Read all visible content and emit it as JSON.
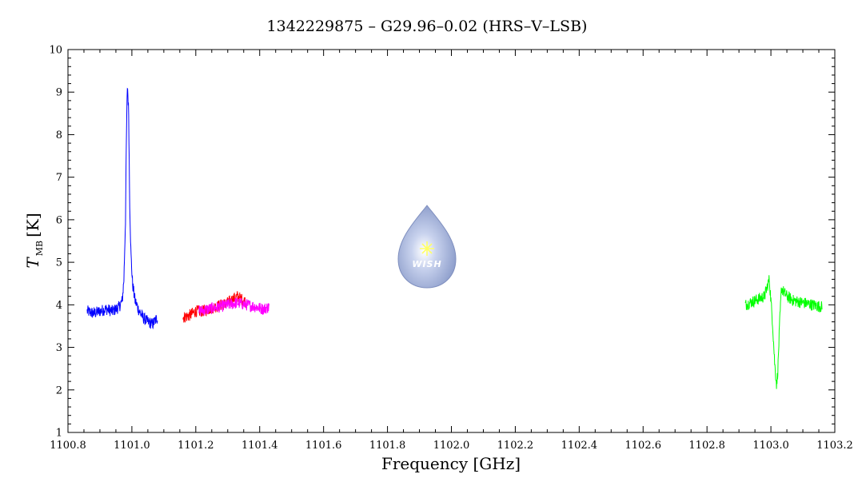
{
  "chart_data": {
    "type": "line",
    "title": "1342229875 – G29.96–0.02 (HRS–V–LSB)",
    "xlabel": "Frequency [GHz]",
    "ylabel": "T",
    "ylabel_subscript": "MB",
    "ylabel_unit": "[K]",
    "xlim": [
      1100.8,
      1103.2
    ],
    "ylim": [
      1,
      10
    ],
    "x_ticks": [
      1100.8,
      1101.0,
      1101.2,
      1101.4,
      1101.6,
      1101.8,
      1102.0,
      1102.2,
      1102.4,
      1102.6,
      1102.8,
      1103.0,
      1103.2
    ],
    "x_tick_labels": [
      "1100.8",
      "1101.0",
      "1101.2",
      "1101.4",
      "1101.6",
      "1101.8",
      "1102.0",
      "1102.2",
      "1102.4",
      "1102.6",
      "1102.8",
      "1103.0",
      "1103.2"
    ],
    "y_ticks": [
      1,
      2,
      3,
      4,
      5,
      6,
      7,
      8,
      9,
      10
    ],
    "y_tick_labels": [
      "1",
      "2",
      "3",
      "4",
      "5",
      "6",
      "7",
      "8",
      "9",
      "10"
    ],
    "grid": false,
    "series": [
      {
        "color": "#0000ff",
        "x": [
          1100.86,
          1100.88,
          1100.9,
          1100.92,
          1100.94,
          1100.96,
          1100.97,
          1100.975,
          1100.98,
          1100.983,
          1100.986,
          1100.99,
          1100.993,
          1100.997,
          1101.002,
          1101.01,
          1101.02,
          1101.035,
          1101.05,
          1101.065,
          1101.08
        ],
        "y": [
          3.85,
          3.8,
          3.85,
          3.9,
          3.85,
          3.95,
          4.1,
          4.6,
          6.0,
          8.0,
          9.2,
          8.5,
          6.5,
          5.2,
          4.5,
          4.1,
          3.9,
          3.7,
          3.6,
          3.55,
          3.7
        ]
      },
      {
        "color": "#ff0000",
        "x": [
          1101.16,
          1101.18,
          1101.2,
          1101.22,
          1101.26,
          1101.3,
          1101.33,
          1101.36
        ],
        "y": [
          3.7,
          3.75,
          3.85,
          3.85,
          3.95,
          4.05,
          4.2,
          4.05
        ]
      },
      {
        "color": "#ff00ff",
        "x": [
          1101.21,
          1101.24,
          1101.27,
          1101.3,
          1101.33,
          1101.36,
          1101.39,
          1101.41,
          1101.43
        ],
        "y": [
          3.85,
          3.9,
          3.95,
          4.0,
          4.05,
          4.0,
          3.95,
          3.9,
          3.95
        ]
      },
      {
        "color": "#00ff00",
        "x": [
          1102.92,
          1102.95,
          1102.98,
          1102.995,
          1103.005,
          1103.012,
          1103.018,
          1103.022,
          1103.027,
          1103.033,
          1103.04,
          1103.05,
          1103.07,
          1103.1,
          1103.13,
          1103.16
        ],
        "y": [
          4.0,
          4.1,
          4.2,
          4.6,
          3.6,
          2.6,
          2.1,
          2.5,
          3.5,
          4.4,
          4.3,
          4.2,
          4.1,
          4.05,
          4.0,
          3.95
        ]
      }
    ]
  },
  "logo": {
    "label": "WISH",
    "color": "#a9b8dd"
  }
}
